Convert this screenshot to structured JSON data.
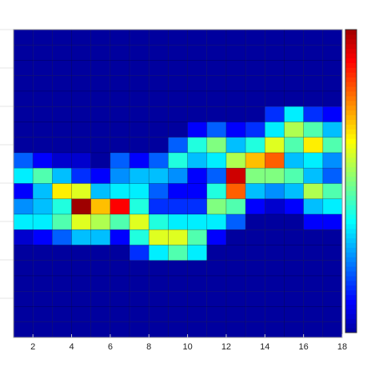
{
  "chart_data": {
    "type": "heatmap",
    "xlim": [
      1,
      18
    ],
    "xticks": [
      2,
      4,
      6,
      8,
      10,
      12,
      14,
      16,
      18
    ],
    "clim": [
      0,
      1
    ],
    "z": [
      [
        0,
        0,
        0,
        0,
        0,
        0,
        0,
        0,
        0.2,
        0.35,
        0.1,
        0.25,
        0.35,
        0.05,
        0,
        0,
        0,
        0,
        0,
        0
      ],
      [
        0,
        0,
        0,
        0,
        0,
        0,
        0,
        0,
        0.1,
        0.45,
        0.3,
        0.3,
        0.35,
        0.1,
        0,
        0,
        0,
        0,
        0,
        0
      ],
      [
        0,
        0,
        0,
        0,
        0,
        0,
        0,
        0,
        0.05,
        0.3,
        0.65,
        0.4,
        0.45,
        0.2,
        0,
        0,
        0,
        0,
        0,
        0
      ],
      [
        0,
        0,
        0,
        0,
        0,
        0,
        0,
        0,
        0.05,
        0.15,
        0.6,
        1,
        0.6,
        0.3,
        0,
        0,
        0,
        0,
        0,
        0
      ],
      [
        0,
        0,
        0,
        0,
        0,
        0,
        0,
        0,
        0,
        0.1,
        0.3,
        0.7,
        0.55,
        0.3,
        0,
        0,
        0,
        0,
        0,
        0
      ],
      [
        0,
        0,
        0,
        0,
        0,
        0,
        0,
        0,
        0.2,
        0.25,
        0.35,
        0.9,
        0.45,
        0.1,
        0,
        0,
        0,
        0,
        0,
        0
      ],
      [
        0,
        0,
        0,
        0,
        0,
        0,
        0,
        0,
        0.1,
        0.3,
        0.35,
        0.4,
        0.6,
        0.4,
        0.15,
        0,
        0,
        0,
        0,
        0
      ],
      [
        0,
        0,
        0,
        0,
        0,
        0,
        0,
        0,
        0.2,
        0.3,
        0.2,
        0.15,
        0.4,
        0.6,
        0.35,
        0,
        0,
        0,
        0,
        0
      ],
      [
        0,
        0,
        0,
        0,
        0,
        0,
        0,
        0.2,
        0.4,
        0.25,
        0.1,
        0.15,
        0.35,
        0.6,
        0.45,
        0,
        0,
        0,
        0,
        0
      ],
      [
        0,
        0,
        0,
        0,
        0,
        0,
        0.1,
        0.4,
        0.3,
        0.1,
        0.1,
        0.15,
        0.35,
        0.45,
        0.35,
        0,
        0,
        0,
        0,
        0
      ],
      [
        0,
        0,
        0,
        0,
        0,
        0,
        0.2,
        0.5,
        0.35,
        0.2,
        0.4,
        0.5,
        0.35,
        0.1,
        0,
        0,
        0,
        0,
        0,
        0
      ],
      [
        0,
        0,
        0,
        0,
        0,
        0,
        0.1,
        0.3,
        0.55,
        0.95,
        0.8,
        0.45,
        0.2,
        0,
        0,
        0,
        0,
        0,
        0,
        0
      ],
      [
        0,
        0,
        0,
        0,
        0,
        0,
        0.15,
        0.4,
        0.7,
        0.5,
        0.3,
        0.1,
        0,
        0,
        0,
        0,
        0,
        0,
        0,
        0
      ],
      [
        0,
        0,
        0,
        0,
        0,
        0.15,
        0.35,
        0.6,
        0.8,
        0.5,
        0.25,
        0.05,
        0,
        0,
        0,
        0,
        0,
        0,
        0,
        0
      ],
      [
        0,
        0,
        0,
        0,
        0,
        0.35,
        0.55,
        0.45,
        0.3,
        0.45,
        0.3,
        0.1,
        0,
        0,
        0,
        0,
        0,
        0,
        0,
        0
      ],
      [
        0,
        0,
        0,
        0,
        0,
        0.15,
        0.45,
        0.65,
        0.35,
        0.3,
        0.55,
        0.3,
        0.1,
        0,
        0,
        0,
        0,
        0,
        0,
        0
      ],
      [
        0,
        0,
        0,
        0,
        0,
        0.1,
        0.3,
        0.45,
        0.25,
        0.2,
        0.45,
        0.35,
        0.1,
        0,
        0,
        0,
        0,
        0,
        0,
        0
      ]
    ]
  }
}
